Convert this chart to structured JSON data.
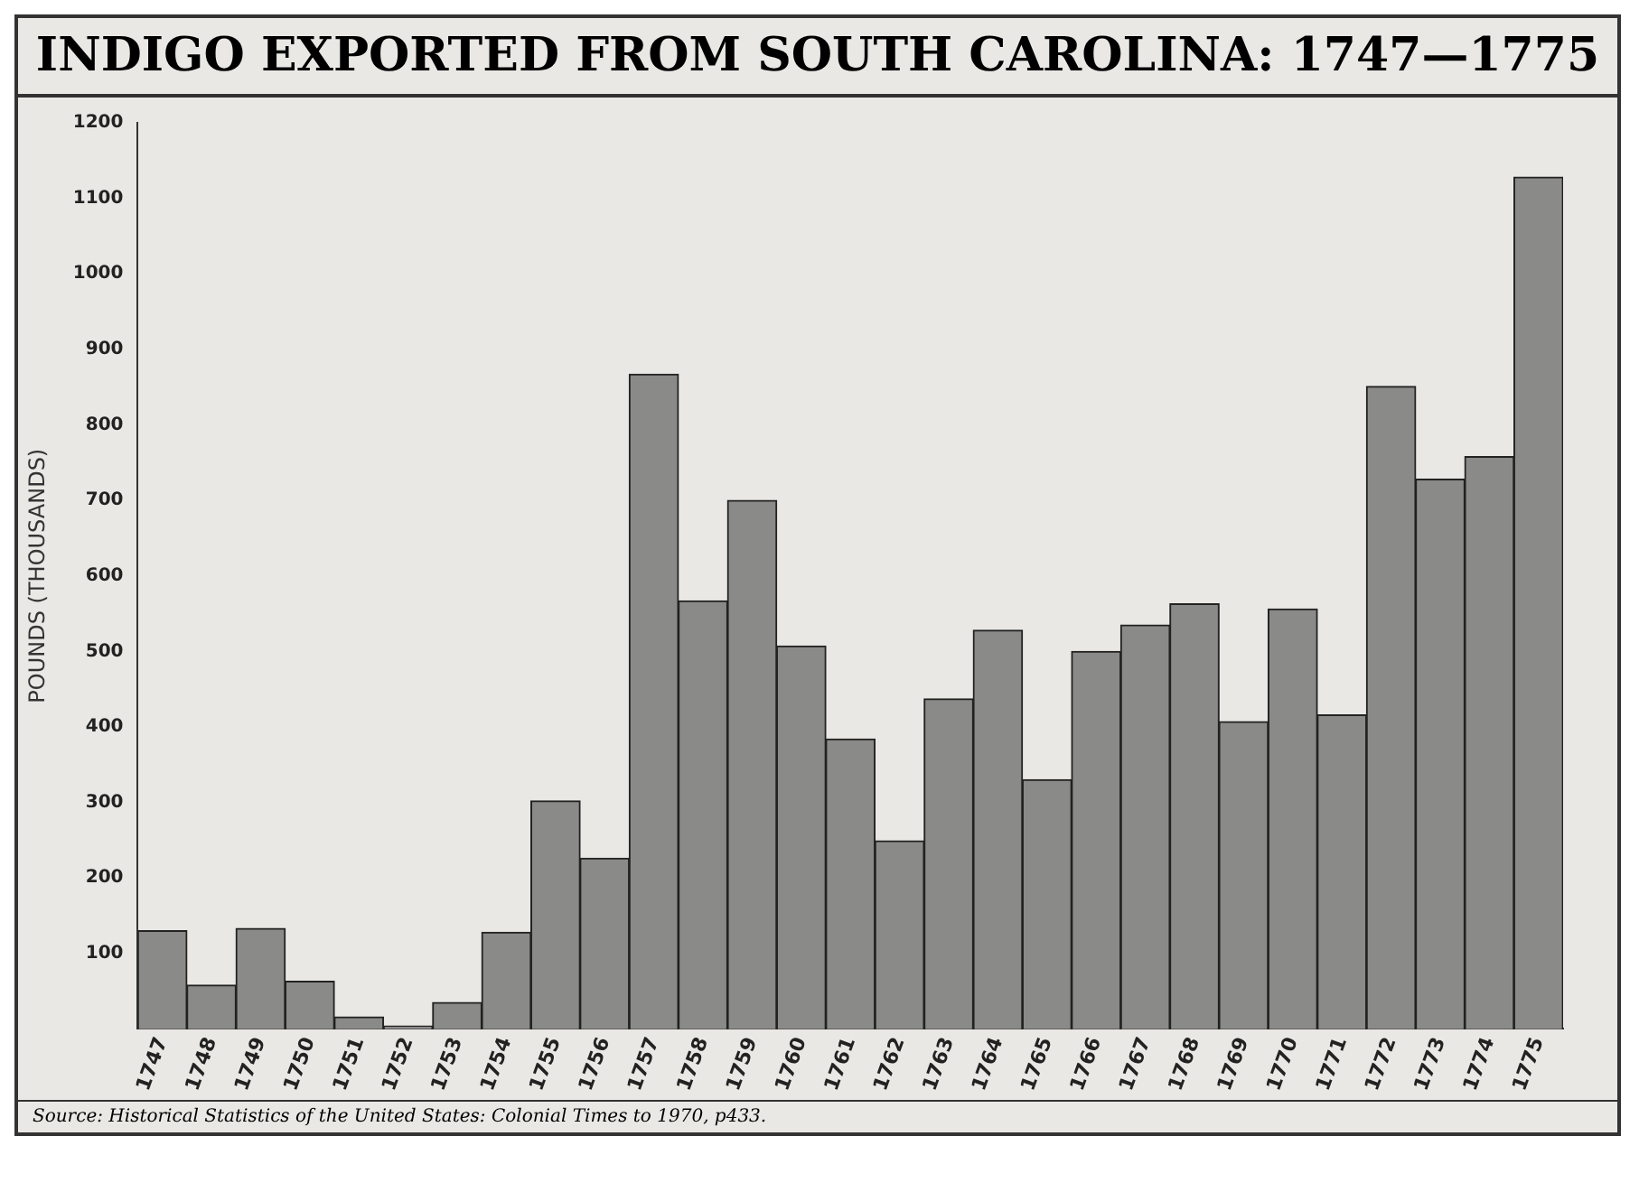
{
  "chart_data": {
    "type": "bar",
    "title": "INDIGO EXPORTED FROM SOUTH CAROLINA: 1747—1775",
    "ylabel": "POUNDS (THOUSANDS)",
    "categories": [
      "1747",
      "1748",
      "1749",
      "1750",
      "1751",
      "1752",
      "1753",
      "1754",
      "1755",
      "1756",
      "1757",
      "1758",
      "1759",
      "1760",
      "1761",
      "1762",
      "1763",
      "1764",
      "1765",
      "1766",
      "1767",
      "1768",
      "1769",
      "1770",
      "1771",
      "1772",
      "1773",
      "1774",
      "1775"
    ],
    "values": [
      130,
      58,
      133,
      63,
      16,
      4,
      35,
      128,
      302,
      226,
      867,
      567,
      700,
      507,
      384,
      249,
      437,
      528,
      330,
      500,
      535,
      563,
      407,
      556,
      416,
      851,
      728,
      758,
      1128
    ],
    "color": "#8a8a88",
    "ylim": [
      0,
      1200
    ],
    "yticks": [
      {
        "value": 0,
        "label": null
      },
      100,
      200,
      300,
      400,
      500,
      600,
      700,
      800,
      900,
      1000,
      1100,
      1200
    ],
    "grid": false,
    "legend": false,
    "annotations": [
      "Source: Historical Statistics of the United States: Colonial Times to 1970, p433."
    ]
  }
}
